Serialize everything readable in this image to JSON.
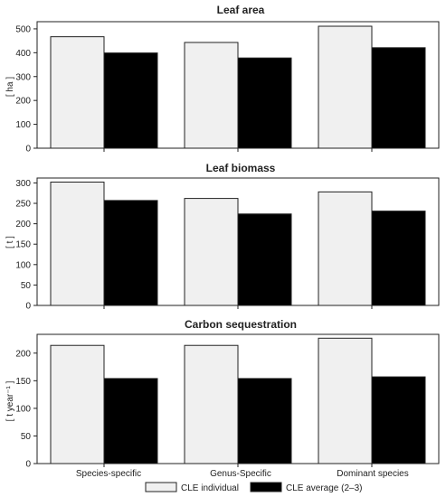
{
  "colors": {
    "individual": "#f0f0f0",
    "average": "#000000",
    "outline": "#222222"
  },
  "categories": [
    "Species-specific",
    "Genus-Specific",
    "Dominant species"
  ],
  "legend": [
    {
      "label": "CLE individual",
      "color": "#f0f0f0"
    },
    {
      "label": "CLE average (2–3)",
      "color": "#000000"
    }
  ],
  "chart_data": [
    {
      "type": "bar",
      "title": "Leaf area",
      "ylabel": "[ ha ]",
      "ylim": [
        0,
        530
      ],
      "yticks": [
        0,
        100,
        200,
        300,
        400,
        500
      ],
      "categories": [
        "Species-specific",
        "Genus-Specific",
        "Dominant species"
      ],
      "series": [
        {
          "name": "CLE individual",
          "values": [
            467,
            443,
            511
          ]
        },
        {
          "name": "CLE average (2–3)",
          "values": [
            399,
            378,
            421
          ]
        }
      ]
    },
    {
      "type": "bar",
      "title": "Leaf biomass",
      "ylabel": "[ t ]",
      "ylim": [
        0,
        312
      ],
      "yticks": [
        0,
        50,
        100,
        150,
        200,
        250,
        300
      ],
      "categories": [
        "Species-specific",
        "Genus-Specific",
        "Dominant species"
      ],
      "series": [
        {
          "name": "CLE individual",
          "values": [
            302,
            262,
            278
          ]
        },
        {
          "name": "CLE average (2–3)",
          "values": [
            257,
            224,
            231
          ]
        }
      ]
    },
    {
      "type": "bar",
      "title": "Carbon sequestration",
      "ylabel": "[ t year⁻¹ ]",
      "ylim": [
        0,
        234
      ],
      "yticks": [
        0,
        50,
        100,
        150,
        200
      ],
      "categories": [
        "Species-specific",
        "Genus-Specific",
        "Dominant species"
      ],
      "series": [
        {
          "name": "CLE individual",
          "values": [
            214,
            214,
            227
          ]
        },
        {
          "name": "CLE average (2–3)",
          "values": [
            154,
            154,
            157
          ]
        }
      ]
    }
  ]
}
